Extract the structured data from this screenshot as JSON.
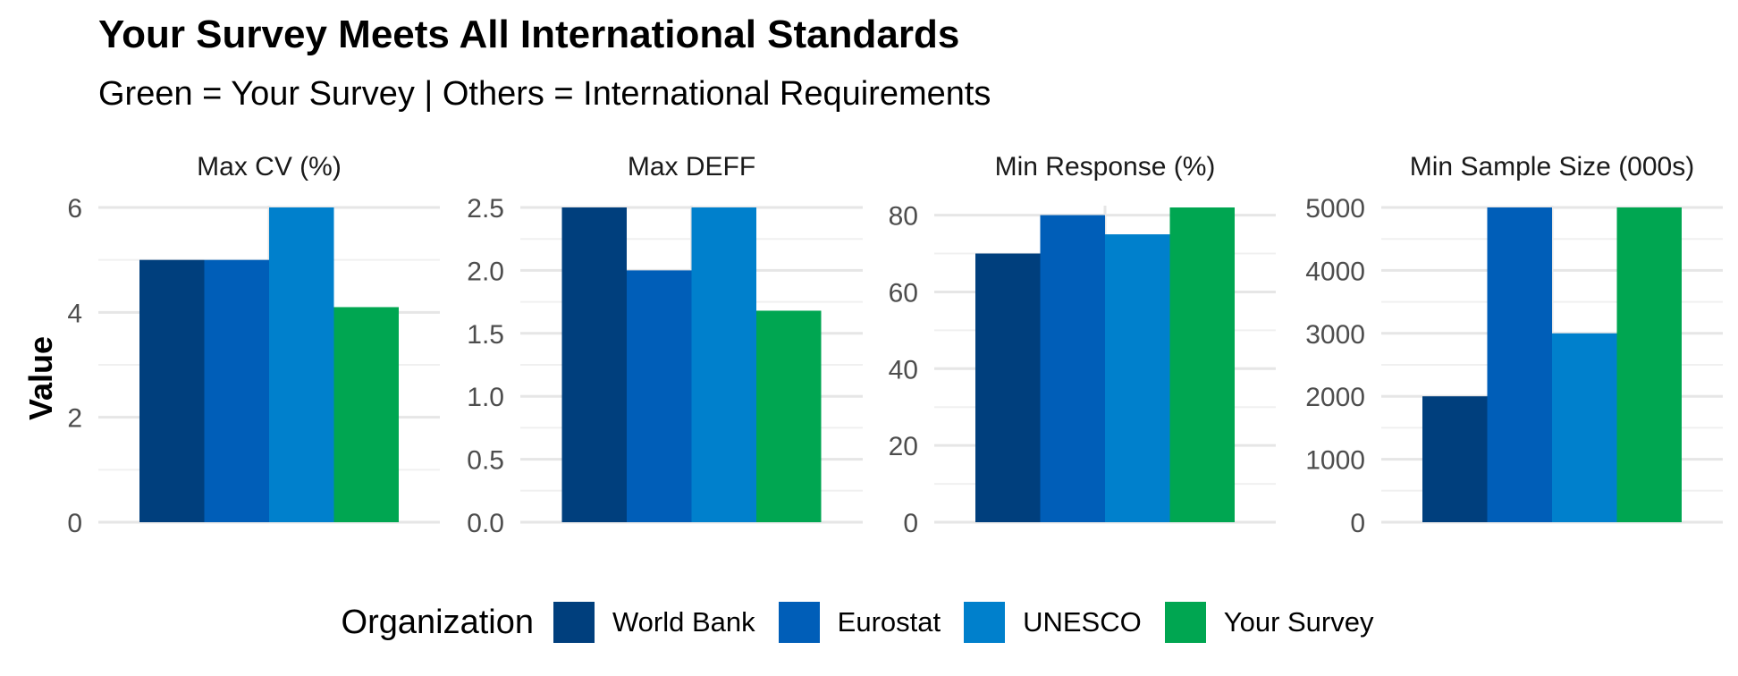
{
  "title": "Your Survey Meets All International Standards",
  "subtitle": "Green = Your Survey | Others = International Requirements",
  "ylabel": "Value",
  "legend": {
    "title": "Organization",
    "items": [
      {
        "label": "World Bank",
        "color": "#003F7D"
      },
      {
        "label": "Eurostat",
        "color": "#005EB8"
      },
      {
        "label": "UNESCO",
        "color": "#0080CC"
      },
      {
        "label": "Your Survey",
        "color": "#00A651"
      }
    ]
  },
  "chart_data": [
    {
      "type": "bar",
      "title": "Max CV (%)",
      "categories": [
        "World Bank",
        "Eurostat",
        "UNESCO",
        "Your Survey"
      ],
      "values": [
        5,
        5,
        6,
        4.1
      ],
      "ylim": [
        0,
        6
      ],
      "yticks": [
        0,
        2,
        4,
        6
      ],
      "ytick_labels": [
        "0",
        "2",
        "4",
        "6"
      ],
      "grid": true
    },
    {
      "type": "bar",
      "title": "Max DEFF",
      "categories": [
        "World Bank",
        "Eurostat",
        "UNESCO",
        "Your Survey"
      ],
      "values": [
        2.5,
        2.0,
        2.5,
        1.68
      ],
      "ylim": [
        0,
        2.5
      ],
      "yticks": [
        0,
        0.5,
        1.0,
        1.5,
        2.0,
        2.5
      ],
      "ytick_labels": [
        "0.0",
        "0.5",
        "1.0",
        "1.5",
        "2.0",
        "2.5"
      ],
      "grid": true
    },
    {
      "type": "bar",
      "title": "Min Response (%)",
      "categories": [
        "World Bank",
        "Eurostat",
        "UNESCO",
        "Your Survey"
      ],
      "values": [
        70,
        80,
        75,
        82
      ],
      "ylim": [
        0,
        82
      ],
      "yticks": [
        0,
        20,
        40,
        60,
        80
      ],
      "ytick_labels": [
        "0",
        "20",
        "40",
        "60",
        "80"
      ],
      "grid": true
    },
    {
      "type": "bar",
      "title": "Min Sample Size (000s)",
      "categories": [
        "World Bank",
        "Eurostat",
        "UNESCO",
        "Your Survey"
      ],
      "values": [
        2000,
        5000,
        3000,
        5000
      ],
      "ylim": [
        0,
        5000
      ],
      "yticks": [
        0,
        1000,
        2000,
        3000,
        4000,
        5000
      ],
      "ytick_labels": [
        "0",
        "1000",
        "2000",
        "3000",
        "4000",
        "5000"
      ],
      "grid": true
    }
  ]
}
